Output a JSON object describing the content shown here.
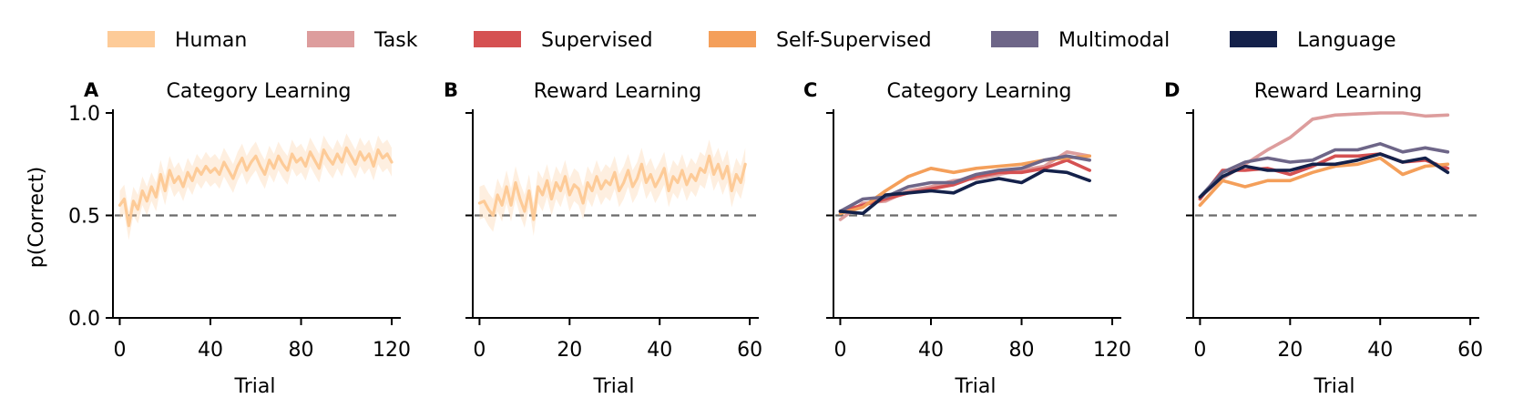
{
  "legend": [
    {
      "name": "Human",
      "color": "#FDCB98"
    },
    {
      "name": "Task",
      "color": "#DD9D9D"
    },
    {
      "name": "Supervised",
      "color": "#D55152"
    },
    {
      "name": "Self-Supervised",
      "color": "#F49F5A"
    },
    {
      "name": "Multimodal",
      "color": "#6E6688"
    },
    {
      "name": "Language",
      "color": "#14214A"
    }
  ],
  "reference_value": 0.5,
  "chart_data": [
    {
      "panel": "A",
      "type": "line",
      "title": "Category Learning",
      "xlabel": "Trial",
      "ylabel": "p(Correct)",
      "xlim": [
        -3,
        124
      ],
      "ylim": [
        0,
        1
      ],
      "xticks": [
        0,
        40,
        80,
        120
      ],
      "yticks": [
        0.0,
        0.5,
        1.0
      ],
      "yticklabels": [
        "0.0",
        "0.5",
        "1.0"
      ],
      "show_yticklabels": true,
      "series": [
        {
          "name": "Human",
          "band": 0.07,
          "x": [
            0,
            2,
            4,
            6,
            8,
            10,
            12,
            14,
            16,
            18,
            20,
            22,
            24,
            26,
            28,
            30,
            32,
            34,
            36,
            38,
            40,
            42,
            44,
            46,
            48,
            50,
            52,
            54,
            56,
            58,
            60,
            62,
            64,
            66,
            68,
            70,
            72,
            74,
            76,
            78,
            80,
            82,
            84,
            86,
            88,
            90,
            92,
            94,
            96,
            98,
            100,
            102,
            104,
            106,
            108,
            110,
            112,
            114,
            116,
            118,
            120
          ],
          "values": [
            0.55,
            0.58,
            0.45,
            0.57,
            0.53,
            0.62,
            0.57,
            0.64,
            0.59,
            0.7,
            0.62,
            0.72,
            0.66,
            0.69,
            0.64,
            0.71,
            0.67,
            0.73,
            0.7,
            0.74,
            0.71,
            0.73,
            0.7,
            0.76,
            0.72,
            0.68,
            0.74,
            0.78,
            0.72,
            0.76,
            0.79,
            0.74,
            0.7,
            0.77,
            0.73,
            0.79,
            0.75,
            0.72,
            0.8,
            0.76,
            0.78,
            0.74,
            0.81,
            0.77,
            0.73,
            0.82,
            0.78,
            0.75,
            0.8,
            0.76,
            0.83,
            0.79,
            0.75,
            0.81,
            0.77,
            0.8,
            0.74,
            0.82,
            0.78,
            0.8,
            0.76
          ]
        }
      ]
    },
    {
      "panel": "B",
      "type": "line",
      "title": "Reward Learning",
      "xlabel": "Trial",
      "ylabel": "",
      "xlim": [
        -1.5,
        62
      ],
      "ylim": [
        0,
        1
      ],
      "xticks": [
        0,
        20,
        40,
        60
      ],
      "yticks": [
        0.0,
        0.5,
        1.0
      ],
      "yticklabels": [
        "0.0",
        "0.5",
        "1.0"
      ],
      "show_yticklabels": false,
      "series": [
        {
          "name": "Human",
          "band": 0.08,
          "x": [
            0,
            1,
            2,
            3,
            4,
            5,
            6,
            7,
            8,
            9,
            10,
            11,
            12,
            13,
            14,
            15,
            16,
            17,
            18,
            19,
            20,
            21,
            22,
            23,
            24,
            25,
            26,
            27,
            28,
            29,
            30,
            31,
            32,
            33,
            34,
            35,
            36,
            37,
            38,
            39,
            40,
            41,
            42,
            43,
            44,
            45,
            46,
            47,
            48,
            49,
            50,
            51,
            52,
            53,
            54,
            55,
            56,
            57,
            58,
            59
          ],
          "values": [
            0.56,
            0.57,
            0.53,
            0.5,
            0.6,
            0.55,
            0.64,
            0.55,
            0.66,
            0.58,
            0.52,
            0.62,
            0.48,
            0.64,
            0.6,
            0.67,
            0.58,
            0.66,
            0.62,
            0.69,
            0.6,
            0.65,
            0.63,
            0.56,
            0.66,
            0.62,
            0.69,
            0.63,
            0.67,
            0.65,
            0.71,
            0.62,
            0.66,
            0.72,
            0.64,
            0.68,
            0.75,
            0.66,
            0.7,
            0.64,
            0.68,
            0.73,
            0.62,
            0.69,
            0.66,
            0.72,
            0.65,
            0.7,
            0.67,
            0.73,
            0.71,
            0.79,
            0.7,
            0.75,
            0.68,
            0.74,
            0.62,
            0.7,
            0.66,
            0.75
          ]
        }
      ]
    },
    {
      "panel": "C",
      "type": "line",
      "title": "Category Learning",
      "xlabel": "Trial",
      "ylabel": "",
      "xlim": [
        -3,
        124
      ],
      "ylim": [
        0,
        1
      ],
      "xticks": [
        0,
        40,
        80,
        120
      ],
      "yticks": [
        0.0,
        0.5,
        1.0
      ],
      "yticklabels": [
        "0.0",
        "0.5",
        "1.0"
      ],
      "show_yticklabels": false,
      "series": [
        {
          "name": "Task",
          "x": [
            0,
            10,
            20,
            30,
            40,
            50,
            60,
            70,
            80,
            90,
            100,
            110
          ],
          "values": [
            0.48,
            0.56,
            0.57,
            0.62,
            0.64,
            0.67,
            0.68,
            0.7,
            0.72,
            0.74,
            0.81,
            0.79
          ]
        },
        {
          "name": "Supervised",
          "x": [
            0,
            10,
            20,
            30,
            40,
            50,
            60,
            70,
            80,
            90,
            100,
            110
          ],
          "values": [
            0.52,
            0.55,
            0.58,
            0.61,
            0.63,
            0.65,
            0.69,
            0.71,
            0.71,
            0.73,
            0.77,
            0.72
          ]
        },
        {
          "name": "Self-Supervised",
          "x": [
            0,
            10,
            20,
            30,
            40,
            50,
            60,
            70,
            80,
            90,
            100,
            110
          ],
          "values": [
            0.51,
            0.54,
            0.62,
            0.69,
            0.73,
            0.71,
            0.73,
            0.74,
            0.75,
            0.77,
            0.78,
            0.79
          ]
        },
        {
          "name": "Multimodal",
          "x": [
            0,
            10,
            20,
            30,
            40,
            50,
            60,
            70,
            80,
            90,
            100,
            110
          ],
          "values": [
            0.52,
            0.58,
            0.59,
            0.64,
            0.66,
            0.66,
            0.7,
            0.72,
            0.73,
            0.77,
            0.79,
            0.77
          ]
        },
        {
          "name": "Language",
          "x": [
            0,
            10,
            20,
            30,
            40,
            50,
            60,
            70,
            80,
            90,
            100,
            110
          ],
          "values": [
            0.52,
            0.51,
            0.6,
            0.61,
            0.62,
            0.61,
            0.66,
            0.68,
            0.66,
            0.72,
            0.71,
            0.67
          ]
        }
      ]
    },
    {
      "panel": "D",
      "type": "line",
      "title": "Reward Learning",
      "xlabel": "Trial",
      "ylabel": "",
      "xlim": [
        -1.5,
        62
      ],
      "ylim": [
        0,
        1
      ],
      "xticks": [
        0,
        20,
        40,
        60
      ],
      "yticks": [
        0.0,
        0.5,
        1.0
      ],
      "yticklabels": [
        "0.0",
        "0.5",
        "1.0"
      ],
      "show_yticklabels": false,
      "series": [
        {
          "name": "Task",
          "x": [
            0,
            5,
            10,
            15,
            20,
            25,
            30,
            35,
            40,
            45,
            50,
            55
          ],
          "values": [
            0.59,
            0.68,
            0.75,
            0.82,
            0.88,
            0.97,
            0.99,
            0.995,
            1.0,
            1.0,
            0.985,
            0.99
          ]
        },
        {
          "name": "Supervised",
          "x": [
            0,
            5,
            10,
            15,
            20,
            25,
            30,
            35,
            40,
            45,
            50,
            55
          ],
          "values": [
            0.58,
            0.72,
            0.72,
            0.73,
            0.7,
            0.74,
            0.79,
            0.79,
            0.8,
            0.76,
            0.77,
            0.73
          ]
        },
        {
          "name": "Self-Supervised",
          "x": [
            0,
            5,
            10,
            15,
            20,
            25,
            30,
            35,
            40,
            45,
            50,
            55
          ],
          "values": [
            0.55,
            0.67,
            0.64,
            0.67,
            0.67,
            0.71,
            0.74,
            0.75,
            0.78,
            0.7,
            0.74,
            0.75
          ]
        },
        {
          "name": "Multimodal",
          "x": [
            0,
            5,
            10,
            15,
            20,
            25,
            30,
            35,
            40,
            45,
            50,
            55
          ],
          "values": [
            0.59,
            0.71,
            0.76,
            0.78,
            0.76,
            0.77,
            0.82,
            0.82,
            0.85,
            0.81,
            0.83,
            0.81
          ]
        },
        {
          "name": "Language",
          "x": [
            0,
            5,
            10,
            15,
            20,
            25,
            30,
            35,
            40,
            45,
            50,
            55
          ],
          "values": [
            0.59,
            0.69,
            0.74,
            0.72,
            0.72,
            0.75,
            0.75,
            0.77,
            0.8,
            0.76,
            0.78,
            0.71
          ]
        }
      ]
    }
  ]
}
